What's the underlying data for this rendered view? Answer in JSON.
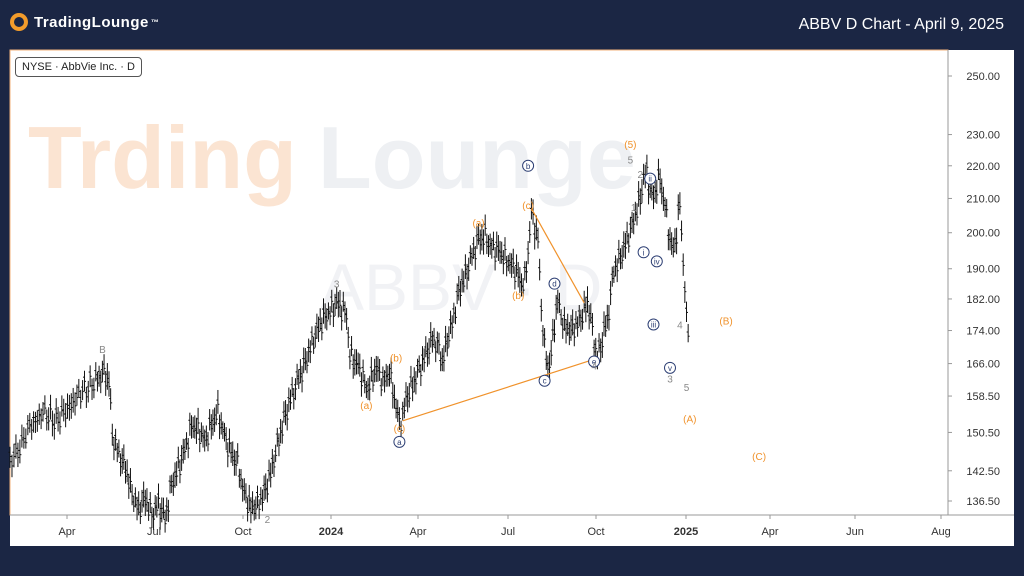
{
  "header": {
    "brand": "TradingLounge",
    "title": "ABBV D Chart - April 9, 2025"
  },
  "symbol_label": "NYSE · AbbVie Inc. · D",
  "watermark": {
    "main_left": "Trding",
    "main_right": "Lounge",
    "sub": "ABBV · D"
  },
  "colors": {
    "background": "#1b2644",
    "orange": "#f0922b",
    "navy": "#2c3e73",
    "grey_label": "#888888",
    "price": "#111111"
  },
  "chart_data": {
    "type": "line",
    "ylim": [
      131,
      262
    ],
    "y_scale": "log",
    "yticks": [
      "250.00",
      "230.00",
      "220.00",
      "210.00",
      "200.00",
      "190.00",
      "182.00",
      "174.00",
      "166.00",
      "158.50",
      "150.50",
      "142.50",
      "136.50"
    ],
    "xticks": [
      "Apr",
      "Jul",
      "Oct",
      "2024",
      "Apr",
      "Jul",
      "Oct",
      "2025",
      "Apr",
      "Jun",
      "Aug"
    ],
    "price_path": [
      [
        0,
        145
      ],
      [
        3,
        147
      ],
      [
        6,
        152
      ],
      [
        10,
        155
      ],
      [
        14,
        153
      ],
      [
        18,
        156
      ],
      [
        22,
        160
      ],
      [
        26,
        162
      ],
      [
        28,
        164
      ],
      [
        30,
        162
      ],
      [
        31,
        150
      ],
      [
        33,
        146
      ],
      [
        35,
        143
      ],
      [
        37,
        138
      ],
      [
        39,
        135
      ],
      [
        41,
        137
      ],
      [
        43,
        134
      ],
      [
        45,
        136
      ],
      [
        47,
        133
      ],
      [
        49,
        140
      ],
      [
        51,
        143
      ],
      [
        53,
        147
      ],
      [
        55,
        152
      ],
      [
        57,
        151
      ],
      [
        59,
        149
      ],
      [
        61,
        152
      ],
      [
        63,
        155
      ],
      [
        65,
        150
      ],
      [
        67,
        146
      ],
      [
        69,
        144
      ],
      [
        71,
        138
      ],
      [
        73,
        135
      ],
      [
        75,
        136
      ],
      [
        77,
        138
      ],
      [
        79,
        142
      ],
      [
        81,
        148
      ],
      [
        83,
        153
      ],
      [
        85,
        158
      ],
      [
        87,
        162
      ],
      [
        89,
        165
      ],
      [
        91,
        170
      ],
      [
        93,
        174
      ],
      [
        95,
        177
      ],
      [
        97,
        179
      ],
      [
        99,
        181
      ],
      [
        101,
        179
      ],
      [
        102,
        178
      ],
      [
        103,
        168
      ],
      [
        105,
        166
      ],
      [
        107,
        163
      ],
      [
        108,
        160
      ],
      [
        110,
        163
      ],
      [
        111,
        165
      ],
      [
        113,
        162
      ],
      [
        115,
        164
      ],
      [
        117,
        156
      ],
      [
        118,
        153
      ],
      [
        119,
        154
      ],
      [
        120,
        158
      ],
      [
        122,
        161
      ],
      [
        124,
        165
      ],
      [
        126,
        168
      ],
      [
        128,
        172
      ],
      [
        130,
        170
      ],
      [
        131,
        166
      ],
      [
        132,
        170
      ],
      [
        134,
        176
      ],
      [
        136,
        184
      ],
      [
        138,
        188
      ],
      [
        140,
        194
      ],
      [
        142,
        198
      ],
      [
        144,
        199
      ],
      [
        146,
        196
      ],
      [
        148,
        195
      ],
      [
        150,
        193
      ],
      [
        152,
        191
      ],
      [
        153,
        190
      ],
      [
        155,
        186
      ],
      [
        156,
        187
      ],
      [
        157,
        195
      ],
      [
        158,
        206
      ],
      [
        159,
        202
      ],
      [
        160,
        198
      ],
      [
        161,
        180
      ],
      [
        162,
        170
      ],
      [
        163,
        165
      ],
      [
        164,
        168
      ],
      [
        165,
        176
      ],
      [
        166,
        182
      ],
      [
        167,
        178
      ],
      [
        168,
        175
      ],
      [
        170,
        174
      ],
      [
        172,
        176
      ],
      [
        174,
        179
      ],
      [
        175,
        181
      ],
      [
        176,
        177
      ],
      [
        177,
        171
      ],
      [
        178,
        168
      ],
      [
        179,
        170
      ],
      [
        180,
        174
      ],
      [
        181,
        176
      ],
      [
        182,
        183
      ],
      [
        183,
        190
      ],
      [
        185,
        193
      ],
      [
        187,
        198
      ],
      [
        189,
        204
      ],
      [
        191,
        210
      ],
      [
        192,
        216
      ],
      [
        193,
        218
      ],
      [
        194,
        212
      ],
      [
        195,
        211
      ],
      [
        196,
        214
      ],
      [
        197,
        216
      ],
      [
        198,
        210
      ],
      [
        199,
        205
      ],
      [
        200,
        198
      ],
      [
        201,
        195
      ],
      [
        202,
        200
      ],
      [
        203,
        209
      ],
      [
        204,
        192
      ],
      [
        205,
        177
      ],
      [
        206,
        174
      ]
    ],
    "wave_labels": [
      {
        "label": "B",
        "t": 28,
        "price": 169.5,
        "style": "grey"
      },
      {
        "label": "2",
        "t": 78,
        "price": 133,
        "style": "grey"
      },
      {
        "label": "3",
        "t": 99,
        "price": 186,
        "style": "grey"
      },
      {
        "label": "(a)",
        "t": 108,
        "price": 156.5,
        "style": "orange"
      },
      {
        "label": "(b)",
        "t": 117,
        "price": 167.5,
        "style": "orange"
      },
      {
        "label": "(c)",
        "t": 118,
        "price": 151.5,
        "style": "orange"
      },
      {
        "label": "a",
        "t": 118,
        "price": 148.5,
        "style": "circle"
      },
      {
        "label": "(a)",
        "t": 142,
        "price": 203,
        "style": "orange"
      },
      {
        "label": "(b)",
        "t": 154,
        "price": 183,
        "style": "orange"
      },
      {
        "label": "b",
        "t": 157,
        "price": 220,
        "style": "circle"
      },
      {
        "label": "(c)",
        "t": 157,
        "price": 208,
        "style": "orange"
      },
      {
        "label": "c",
        "t": 162,
        "price": 162,
        "style": "circle"
      },
      {
        "label": "d",
        "t": 165,
        "price": 186,
        "style": "circle"
      },
      {
        "label": "e",
        "t": 177,
        "price": 166.5,
        "style": "circle"
      },
      {
        "label": "4",
        "t": 177,
        "price": 165.5,
        "style": "grey"
      },
      {
        "label": "(5)",
        "t": 188,
        "price": 227,
        "style": "orange"
      },
      {
        "label": "5",
        "t": 188,
        "price": 222,
        "style": "grey"
      },
      {
        "label": "2",
        "t": 191,
        "price": 217.5,
        "style": "grey"
      },
      {
        "label": "ii",
        "t": 194,
        "price": 216,
        "style": "circle"
      },
      {
        "label": "1",
        "t": 189,
        "price": 207.5,
        "style": "grey"
      },
      {
        "label": "i",
        "t": 192,
        "price": 194.5,
        "style": "circle"
      },
      {
        "label": "iv",
        "t": 196,
        "price": 192,
        "style": "circle"
      },
      {
        "label": "iii",
        "t": 195,
        "price": 175.5,
        "style": "circle"
      },
      {
        "label": "4",
        "t": 203,
        "price": 175.5,
        "style": "grey"
      },
      {
        "label": "(B)",
        "t": 217,
        "price": 176.5,
        "style": "orange"
      },
      {
        "label": "v",
        "t": 200,
        "price": 165,
        "style": "circle"
      },
      {
        "label": "3",
        "t": 200,
        "price": 162.5,
        "style": "grey"
      },
      {
        "label": "5",
        "t": 205,
        "price": 160.5,
        "style": "grey"
      },
      {
        "label": "(A)",
        "t": 206,
        "price": 153.5,
        "style": "orange"
      },
      {
        "label": "(C)",
        "t": 227,
        "price": 145.5,
        "style": "orange"
      }
    ],
    "trendlines": [
      {
        "from": [
          119,
          153
        ],
        "to": [
          177,
          167
        ]
      },
      {
        "from": [
          158,
          207
        ],
        "to": [
          174,
          181
        ]
      }
    ],
    "grid": false,
    "legend": "none"
  }
}
